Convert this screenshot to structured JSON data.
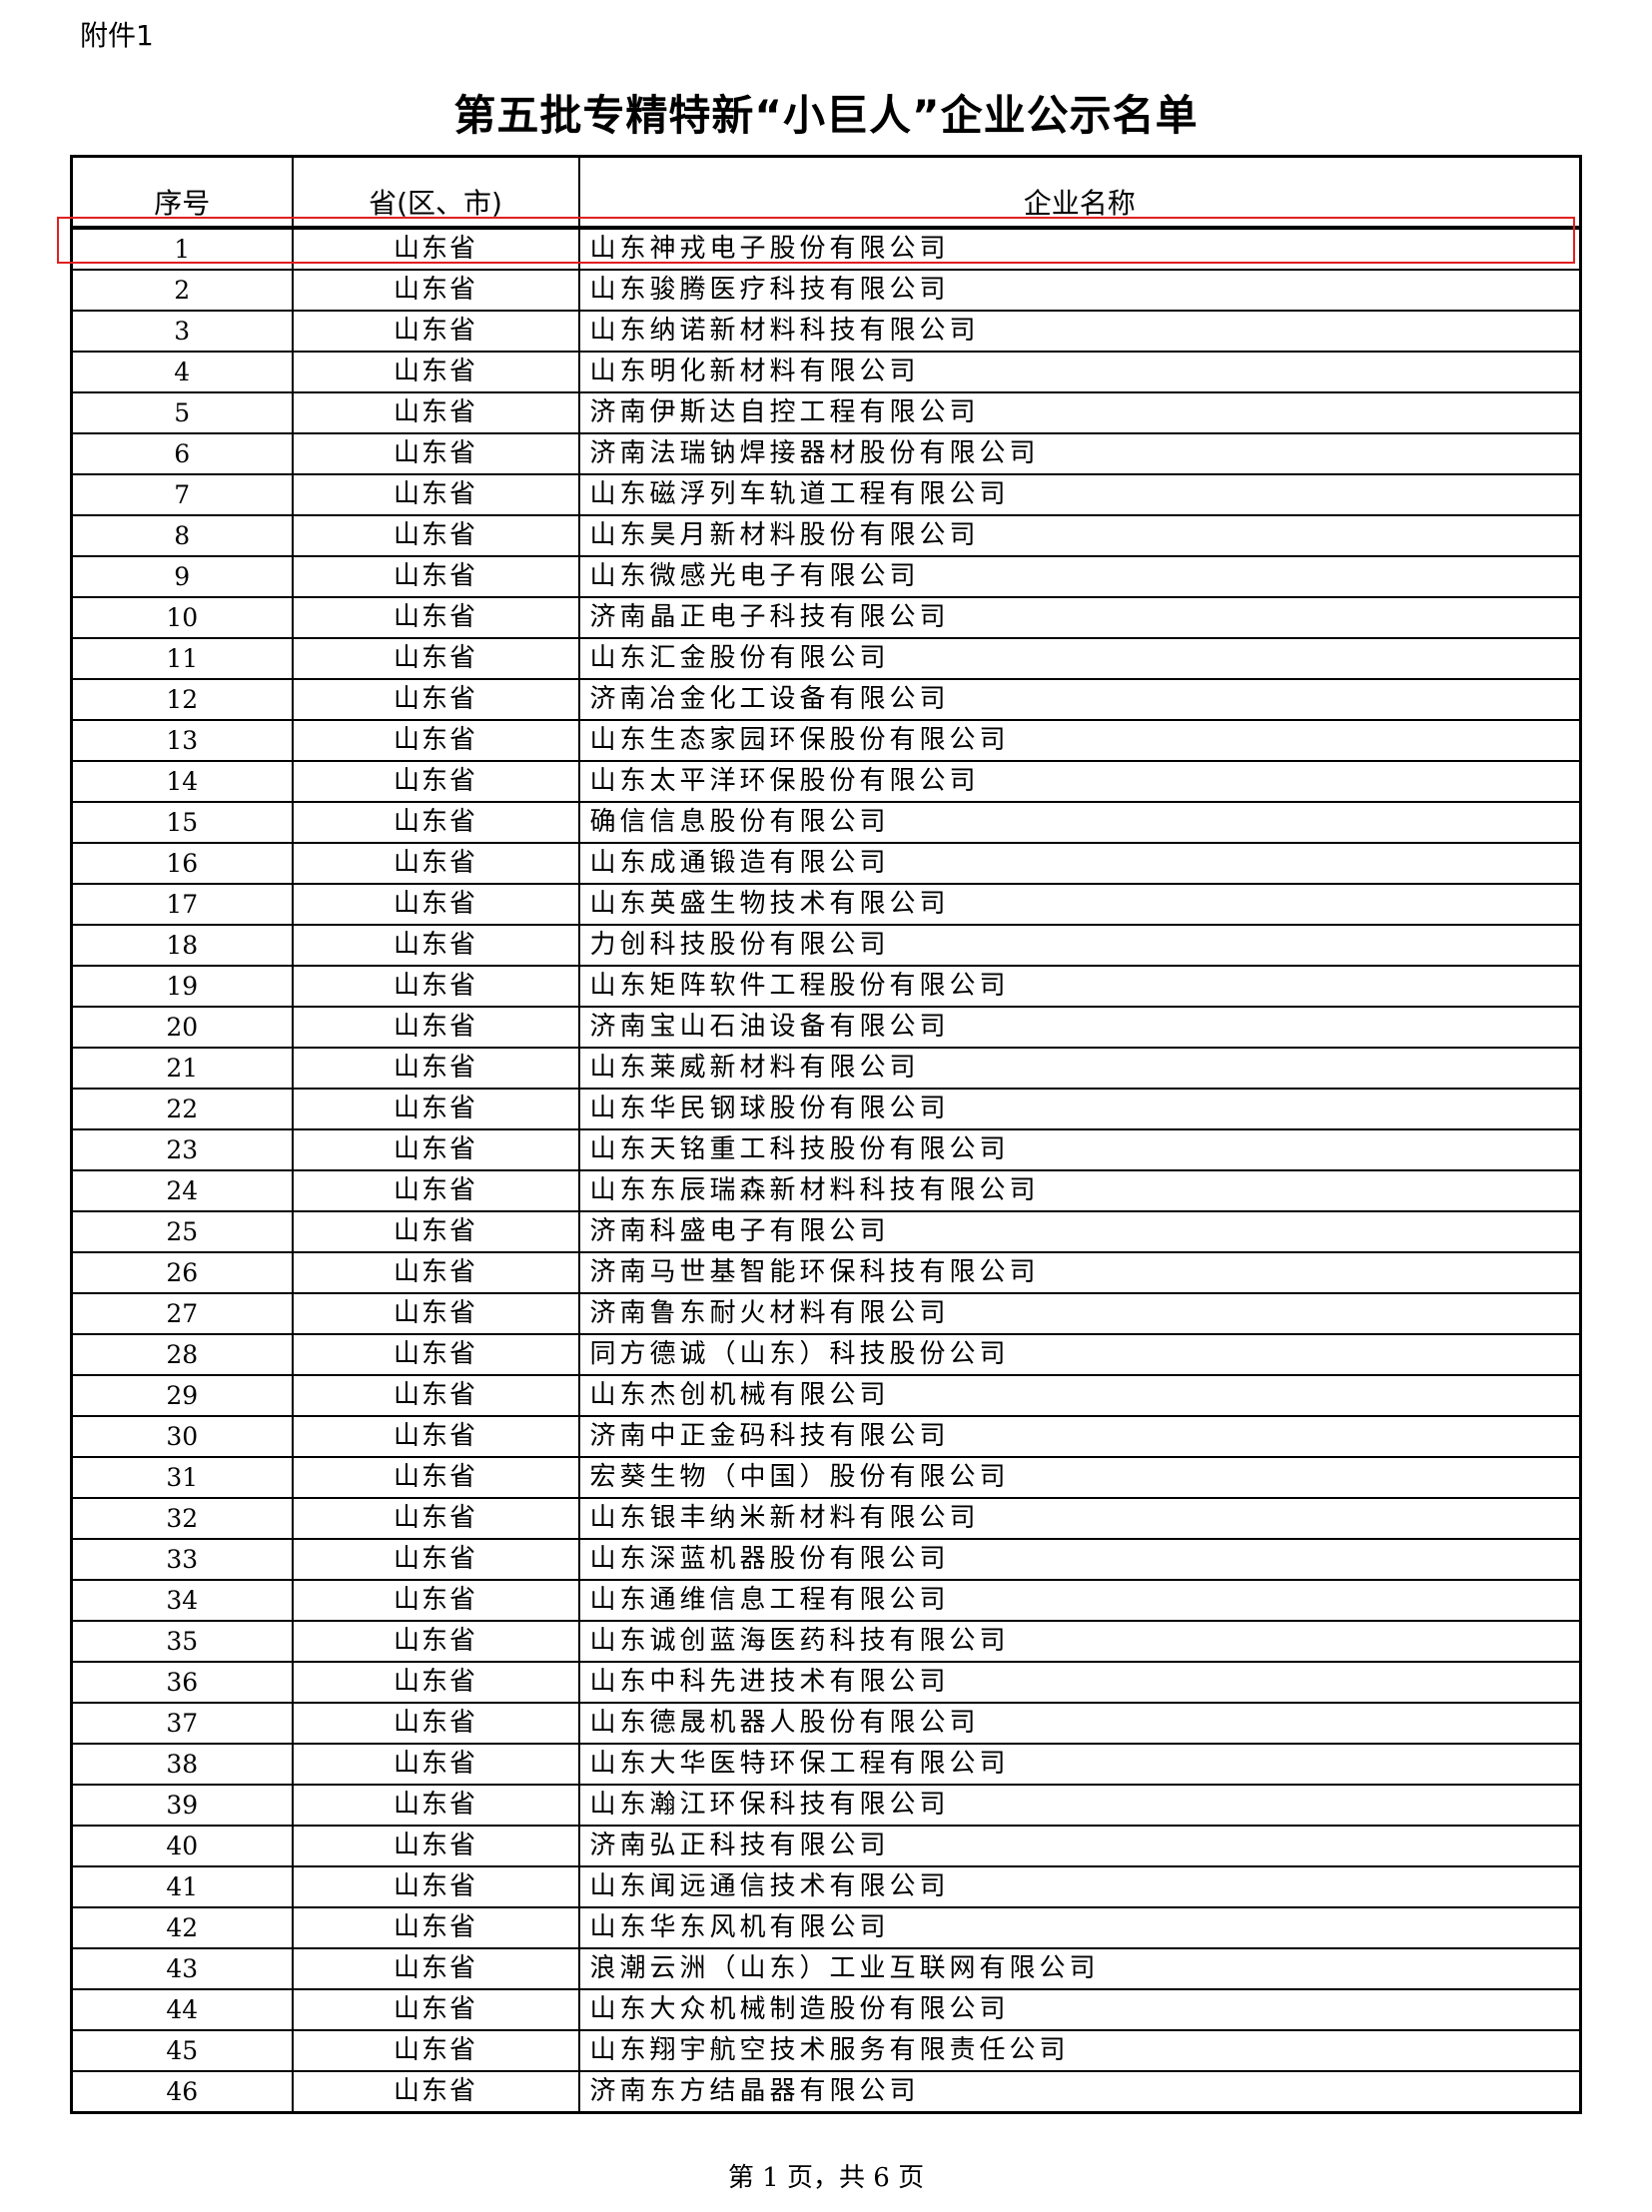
{
  "attachment_label": "附件1",
  "title": "第五批专精特新“小巨人”企业公示名单",
  "table": {
    "headers": [
      "序号",
      "省(区、市)",
      "企业名称"
    ],
    "province": "山东省",
    "rows": [
      "山东神戎电子股份有限公司",
      "山东骏腾医疗科技有限公司",
      "山东纳诺新材料科技有限公司",
      "山东明化新材料有限公司",
      "济南伊斯达自控工程有限公司",
      "济南法瑞钠焊接器材股份有限公司",
      "山东磁浮列车轨道工程有限公司",
      "山东昊月新材料股份有限公司",
      "山东微感光电子有限公司",
      "济南晶正电子科技有限公司",
      "山东汇金股份有限公司",
      "济南冶金化工设备有限公司",
      "山东生态家园环保股份有限公司",
      "山东太平洋环保股份有限公司",
      "确信信息股份有限公司",
      "山东成通锻造有限公司",
      "山东英盛生物技术有限公司",
      "力创科技股份有限公司",
      "山东矩阵软件工程股份有限公司",
      "济南宝山石油设备有限公司",
      "山东莱威新材料有限公司",
      "山东华民钢球股份有限公司",
      "山东天铭重工科技股份有限公司",
      "山东东辰瑞森新材料科技有限公司",
      "济南科盛电子有限公司",
      "济南马世基智能环保科技有限公司",
      "济南鲁东耐火材料有限公司",
      "同方德诚（山东）科技股份公司",
      "山东杰创机械有限公司",
      "济南中正金码科技有限公司",
      "宏葵生物（中国）股份有限公司",
      "山东银丰纳米新材料有限公司",
      "山东深蓝机器股份有限公司",
      "山东通维信息工程有限公司",
      "山东诚创蓝海医药科技有限公司",
      "山东中科先进技术有限公司",
      "山东德晟机器人股份有限公司",
      "山东大华医特环保工程有限公司",
      "山东瀚江环保科技有限公司",
      "济南弘正科技有限公司",
      "山东闻远通信技术有限公司",
      "山东华东风机有限公司",
      "浪潮云洲（山东）工业互联网有限公司",
      "山东大众机械制造股份有限公司",
      "山东翔宇航空技术服务有限责任公司",
      "济南东方结晶器有限公司"
    ]
  },
  "highlight_color": "#e02020",
  "footer": "第 1 页，共 6 页"
}
